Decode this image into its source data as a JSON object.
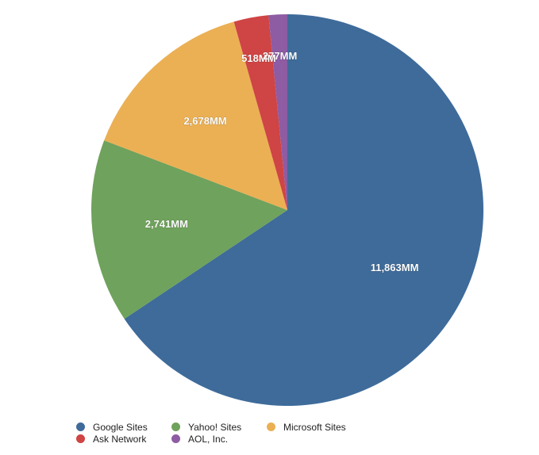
{
  "chart_data": {
    "type": "pie",
    "title": "",
    "series": [
      {
        "name": "Google Sites",
        "value": 11863,
        "label": "11,863MM",
        "color": "#3e6b9a"
      },
      {
        "name": "Yahoo! Sites",
        "value": 2741,
        "label": "2,741MM",
        "color": "#6fa25c"
      },
      {
        "name": "Microsoft Sites",
        "value": 2678,
        "label": "2,678MM",
        "color": "#ebb054"
      },
      {
        "name": "Ask Network",
        "value": 518,
        "label": "518MM",
        "color": "#cf4444"
      },
      {
        "name": "AOL, Inc.",
        "value": 277,
        "label": "277MM",
        "color": "#8d5ca3"
      }
    ],
    "legend_placement": "bottom-left",
    "start_at": "top",
    "direction": "clockwise"
  },
  "legend": {
    "row1": [
      "Google Sites",
      "Yahoo! Sites",
      "Microsoft Sites"
    ],
    "row2": [
      "Ask Network",
      "AOL, Inc."
    ]
  }
}
